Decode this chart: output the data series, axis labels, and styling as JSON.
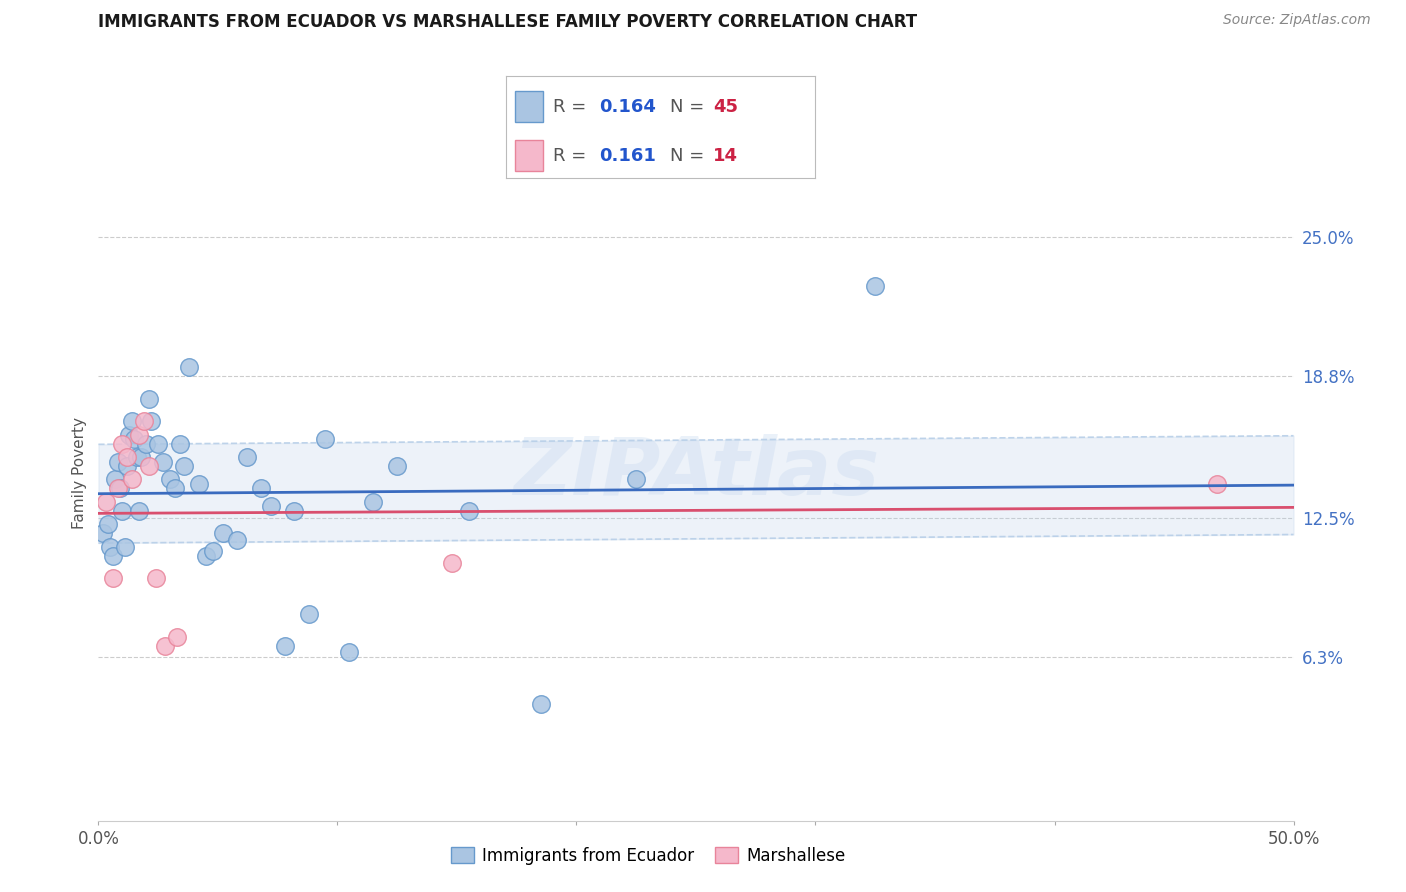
{
  "title": "IMMIGRANTS FROM ECUADOR VS MARSHALLESE FAMILY POVERTY CORRELATION CHART",
  "source": "Source: ZipAtlas.com",
  "ylabel": "Family Poverty",
  "ytick_labels": [
    "25.0%",
    "18.8%",
    "12.5%",
    "6.3%"
  ],
  "ytick_values": [
    0.25,
    0.188,
    0.125,
    0.063
  ],
  "xlim": [
    0.0,
    0.5
  ],
  "ylim": [
    -0.01,
    0.3
  ],
  "ecuador_R": "0.164",
  "ecuador_N": "45",
  "marshallese_R": "0.161",
  "marshallese_N": "14",
  "ecuador_color": "#aac5e2",
  "ecuador_edge": "#6699cc",
  "marshallese_color": "#f5b8cb",
  "marshallese_edge": "#e8849a",
  "reg_ecuador_color": "#3a6bbf",
  "reg_marshallese_color": "#d94f6e",
  "reg_ecuador_ci_color": "#b8cfe8",
  "watermark": "ZIPAtlas",
  "ecuador_x": [
    0.002,
    0.004,
    0.005,
    0.006,
    0.007,
    0.008,
    0.009,
    0.01,
    0.011,
    0.012,
    0.013,
    0.014,
    0.015,
    0.016,
    0.017,
    0.018,
    0.02,
    0.021,
    0.022,
    0.025,
    0.027,
    0.03,
    0.032,
    0.034,
    0.036,
    0.038,
    0.042,
    0.045,
    0.048,
    0.052,
    0.058,
    0.062,
    0.068,
    0.072,
    0.078,
    0.082,
    0.088,
    0.095,
    0.105,
    0.115,
    0.125,
    0.155,
    0.185,
    0.225,
    0.325
  ],
  "ecuador_y": [
    0.118,
    0.122,
    0.112,
    0.108,
    0.142,
    0.15,
    0.138,
    0.128,
    0.112,
    0.148,
    0.162,
    0.168,
    0.16,
    0.152,
    0.128,
    0.152,
    0.158,
    0.178,
    0.168,
    0.158,
    0.15,
    0.142,
    0.138,
    0.158,
    0.148,
    0.192,
    0.14,
    0.108,
    0.11,
    0.118,
    0.115,
    0.152,
    0.138,
    0.13,
    0.068,
    0.128,
    0.082,
    0.16,
    0.065,
    0.132,
    0.148,
    0.128,
    0.042,
    0.142,
    0.228
  ],
  "marshallese_x": [
    0.003,
    0.006,
    0.008,
    0.01,
    0.012,
    0.014,
    0.017,
    0.019,
    0.021,
    0.024,
    0.028,
    0.033,
    0.148,
    0.468
  ],
  "marshallese_y": [
    0.132,
    0.098,
    0.138,
    0.158,
    0.152,
    0.142,
    0.162,
    0.168,
    0.148,
    0.098,
    0.068,
    0.072,
    0.105,
    0.14
  ]
}
